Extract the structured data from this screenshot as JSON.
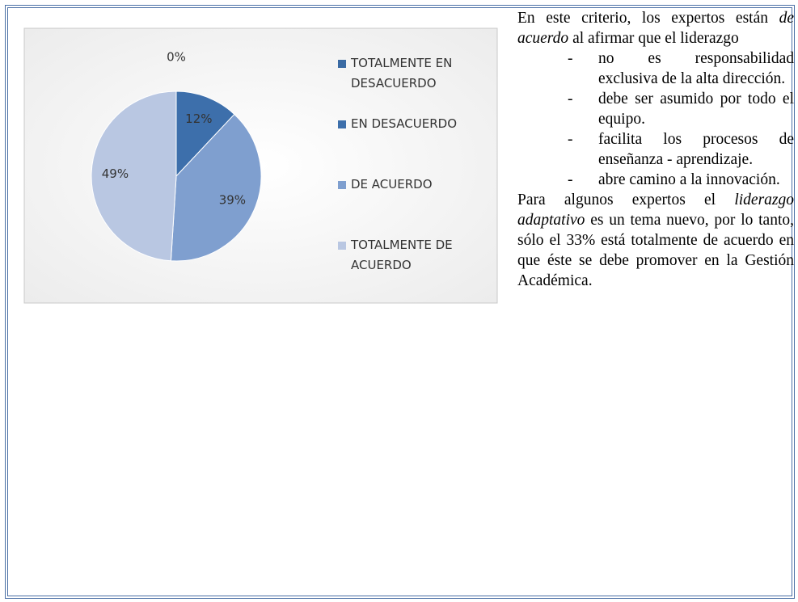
{
  "chart_data": {
    "type": "pie",
    "categories": [
      "TOTALMENTE EN DESACUERDO",
      "EN DESACUERDO",
      "DE ACUERDO",
      "TOTALMENTE DE ACUERDO"
    ],
    "values": [
      0,
      12,
      39,
      49
    ],
    "value_labels": [
      "0%",
      "12%",
      "39%",
      "49%"
    ],
    "colors": [
      "#3a6aa3",
      "#3d6fab",
      "#7f9fcf",
      "#b9c7e2"
    ],
    "legend": "right"
  },
  "text": {
    "intro": [
      "En este criterio, los expertos están ",
      "de acuerdo",
      " al afirmar que el liderazgo"
    ],
    "items": [
      "no es responsabilidad exclusiva de la alta dirección.",
      "debe ser asumido por todo el equipo.",
      "facilita los procesos de enseñanza - aprendizaje.",
      "abre camino a la innovación."
    ],
    "bullet": "-",
    "closing": [
      "Para algunos expertos el ",
      "liderazgo adaptativo",
      " es un tema nuevo, por lo tanto, sólo el 33% está totalmente de acuerdo en que éste se debe promover en la Gestión Académica."
    ]
  }
}
